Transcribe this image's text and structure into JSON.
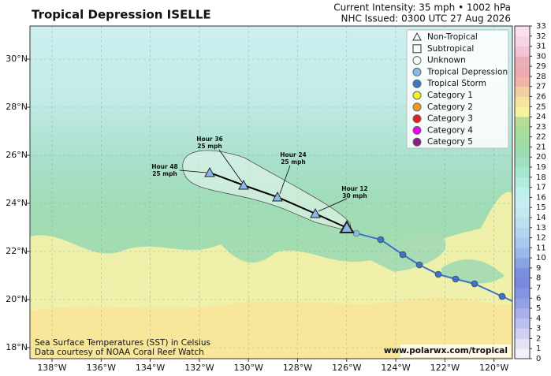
{
  "header": {
    "title": "Tropical Depression ISELLE",
    "intensity": "Current Intensity: 35 mph • 1002 hPa",
    "issued": "NHC Issued: 0300 UTC 27 Aug 2026"
  },
  "map": {
    "lat_labels": [
      "30°N",
      "28°N",
      "26°N",
      "24°N",
      "22°N",
      "20°N",
      "18°N"
    ],
    "lon_labels": [
      "138°W",
      "136°W",
      "134°W",
      "132°W",
      "130°W",
      "128°W",
      "126°W",
      "124°W",
      "122°W",
      "120°W"
    ],
    "forecast_labels": [
      {
        "hour": "Hour 12",
        "wind": "30 mph"
      },
      {
        "hour": "Hour 24",
        "wind": "25 mph"
      },
      {
        "hour": "Hour 36",
        "wind": "25 mph"
      },
      {
        "hour": "Hour 48",
        "wind": "25 mph"
      }
    ]
  },
  "legend": {
    "items": [
      "Non-Tropical",
      "Subtropical",
      "Unknown",
      "Tropical Depression",
      "Tropical Storm",
      "Category 1",
      "Category 2",
      "Category 3",
      "Category 4",
      "Category 5"
    ]
  },
  "colorbar": {
    "ticks": [
      0,
      1,
      2,
      3,
      4,
      5,
      6,
      7,
      8,
      9,
      10,
      11,
      12,
      13,
      14,
      15,
      16,
      17,
      18,
      19,
      20,
      21,
      22,
      23,
      24,
      25,
      26,
      27,
      28,
      29,
      30,
      31,
      32,
      33
    ]
  },
  "credits": {
    "sst": "Sea Surface Temperatures (SST) in Celsius",
    "source": "Data courtesy of NOAA Coral Reef Watch",
    "website": "www.polarwx.com/tropical"
  }
}
